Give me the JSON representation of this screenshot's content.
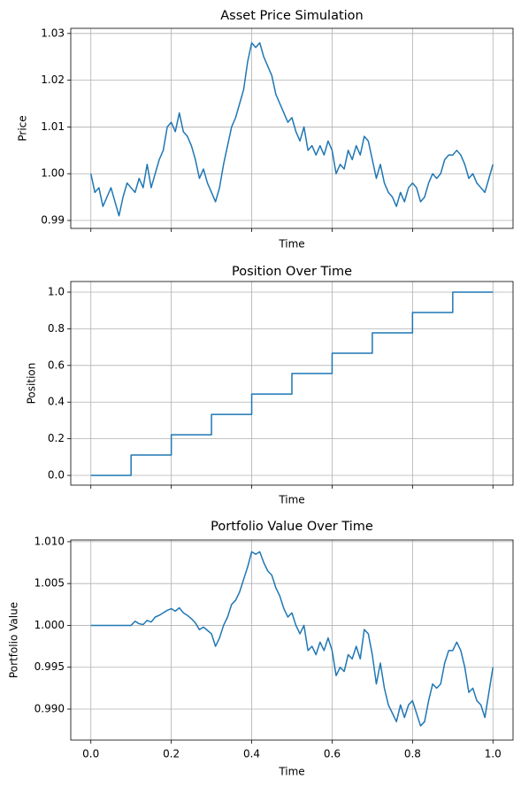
{
  "chart_data": [
    {
      "type": "line",
      "title": "Asset Price Simulation",
      "xlabel": "Time",
      "ylabel": "Price",
      "x": [
        0,
        0.01,
        0.02,
        0.03,
        0.04,
        0.05,
        0.06,
        0.07,
        0.08,
        0.09,
        0.1,
        0.11,
        0.12,
        0.13,
        0.14,
        0.15,
        0.16,
        0.17,
        0.18,
        0.19,
        0.2,
        0.21,
        0.22,
        0.23,
        0.24,
        0.25,
        0.26,
        0.27,
        0.28,
        0.29,
        0.3,
        0.31,
        0.32,
        0.33,
        0.34,
        0.35,
        0.36,
        0.37,
        0.38,
        0.39,
        0.4,
        0.41,
        0.42,
        0.43,
        0.44,
        0.45,
        0.46,
        0.47,
        0.48,
        0.49,
        0.5,
        0.51,
        0.52,
        0.53,
        0.54,
        0.55,
        0.56,
        0.57,
        0.58,
        0.59,
        0.6,
        0.61,
        0.62,
        0.63,
        0.64,
        0.65,
        0.66,
        0.67,
        0.68,
        0.69,
        0.7,
        0.71,
        0.72,
        0.73,
        0.74,
        0.75,
        0.76,
        0.77,
        0.78,
        0.79,
        0.8,
        0.81,
        0.82,
        0.83,
        0.84,
        0.85,
        0.86,
        0.87,
        0.88,
        0.89,
        0.9,
        0.91,
        0.92,
        0.93,
        0.94,
        0.95,
        0.96,
        0.97,
        0.98,
        0.99,
        1
      ],
      "series": [
        {
          "color": "#1f77b4",
          "values": [
            1.0,
            0.996,
            0.997,
            0.993,
            0.995,
            0.997,
            0.994,
            0.991,
            0.995,
            0.998,
            0.997,
            0.996,
            0.999,
            0.997,
            1.002,
            0.997,
            1.0,
            1.003,
            1.005,
            1.01,
            1.011,
            1.009,
            1.013,
            1.009,
            1.008,
            1.006,
            1.003,
            0.999,
            1.001,
            0.998,
            0.996,
            0.994,
            0.997,
            1.002,
            1.006,
            1.01,
            1.012,
            1.015,
            1.018,
            1.024,
            1.028,
            1.027,
            1.028,
            1.025,
            1.023,
            1.021,
            1.017,
            1.015,
            1.013,
            1.011,
            1.012,
            1.009,
            1.007,
            1.01,
            1.005,
            1.006,
            1.004,
            1.006,
            1.004,
            1.007,
            1.005,
            1.0,
            1.002,
            1.001,
            1.005,
            1.003,
            1.006,
            1.004,
            1.008,
            1.007,
            1.003,
            0.999,
            1.002,
            0.998,
            0.996,
            0.995,
            0.993,
            0.996,
            0.994,
            0.997,
            0.998,
            0.997,
            0.994,
            0.995,
            0.998,
            1.0,
            0.999,
            1.0,
            1.003,
            1.004,
            1.004,
            1.005,
            1.004,
            1.002,
            0.999,
            1.0,
            0.998,
            0.997,
            0.996,
            0.999,
            1.002
          ]
        }
      ],
      "xlim": [
        -0.05,
        1.05
      ],
      "xticks": [
        0,
        0.2,
        0.4,
        0.6,
        0.8,
        1
      ],
      "ylim": [
        0.9883,
        1.0311
      ],
      "yticks": [
        0.99,
        {
          "value": 1,
          "label": "1.00"
        },
        1.01,
        1.02,
        1.03
      ],
      "grid": true
    },
    {
      "type": "line",
      "title": "Position Over Time",
      "xlabel": "Time",
      "ylabel": "Position",
      "x": [
        0,
        0.1,
        0.1,
        0.2,
        0.2,
        0.3,
        0.3,
        0.4,
        0.4,
        0.5,
        0.5,
        0.6,
        0.6,
        0.7,
        0.7,
        0.8,
        0.8,
        0.9,
        0.9,
        1
      ],
      "series": [
        {
          "color": "#1f77b4",
          "values": [
            0,
            0,
            0.111,
            0.111,
            0.222,
            0.222,
            0.333,
            0.333,
            0.444,
            0.444,
            0.556,
            0.556,
            0.667,
            0.667,
            0.778,
            0.778,
            0.889,
            0.889,
            1,
            1
          ]
        }
      ],
      "xlim": [
        -0.05,
        1.05
      ],
      "xticks": [
        0,
        0.2,
        0.4,
        0.6,
        0.8,
        1
      ],
      "ylim": [
        -0.053,
        1.058
      ],
      "yticks": [
        {
          "value": 0,
          "label": "0.0"
        },
        0.2,
        0.4,
        0.6,
        0.8,
        {
          "value": 1,
          "label": "1.0"
        }
      ],
      "grid": true
    },
    {
      "type": "line",
      "title": "Portfolio Value Over Time",
      "xlabel": "Time",
      "ylabel": "Portfolio Value",
      "x": [
        0,
        0.01,
        0.02,
        0.03,
        0.04,
        0.05,
        0.06,
        0.07,
        0.08,
        0.09,
        0.1,
        0.11,
        0.12,
        0.13,
        0.14,
        0.15,
        0.16,
        0.17,
        0.18,
        0.19,
        0.2,
        0.21,
        0.22,
        0.23,
        0.24,
        0.25,
        0.26,
        0.27,
        0.28,
        0.29,
        0.3,
        0.31,
        0.32,
        0.33,
        0.34,
        0.35,
        0.36,
        0.37,
        0.38,
        0.39,
        0.4,
        0.41,
        0.42,
        0.43,
        0.44,
        0.45,
        0.46,
        0.47,
        0.48,
        0.49,
        0.5,
        0.51,
        0.52,
        0.53,
        0.54,
        0.55,
        0.56,
        0.57,
        0.58,
        0.59,
        0.6,
        0.61,
        0.62,
        0.63,
        0.64,
        0.65,
        0.66,
        0.67,
        0.68,
        0.69,
        0.7,
        0.71,
        0.72,
        0.73,
        0.74,
        0.75,
        0.76,
        0.77,
        0.78,
        0.79,
        0.8,
        0.81,
        0.82,
        0.83,
        0.84,
        0.85,
        0.86,
        0.87,
        0.88,
        0.89,
        0.9,
        0.91,
        0.92,
        0.93,
        0.94,
        0.95,
        0.96,
        0.97,
        0.98,
        0.99,
        1
      ],
      "series": [
        {
          "color": "#1f77b4",
          "values": [
            1.0,
            1.0,
            1.0,
            1.0,
            1.0,
            1.0,
            1.0,
            1.0,
            1.0,
            1.0,
            1.0,
            1.0005,
            1.0002,
            1.0001,
            1.0006,
            1.0004,
            1.001,
            1.0012,
            1.0015,
            1.0018,
            1.002,
            1.0017,
            1.0021,
            1.0015,
            1.0012,
            1.0008,
            1.0003,
            0.9995,
            0.9998,
            0.9994,
            0.999,
            0.9975,
            0.9985,
            1.0,
            1.001,
            1.0025,
            1.003,
            1.004,
            1.0055,
            1.007,
            1.0088,
            1.0085,
            1.0088,
            1.0075,
            1.0065,
            1.006,
            1.0045,
            1.0035,
            1.002,
            1.001,
            1.0015,
            1.0,
            0.999,
            1.0,
            0.997,
            0.9975,
            0.9965,
            0.998,
            0.997,
            0.9985,
            0.997,
            0.994,
            0.995,
            0.9945,
            0.9965,
            0.996,
            0.9975,
            0.996,
            0.9995,
            0.999,
            0.9965,
            0.993,
            0.9955,
            0.9925,
            0.9905,
            0.9895,
            0.9885,
            0.9905,
            0.989,
            0.9905,
            0.991,
            0.9895,
            0.988,
            0.9885,
            0.991,
            0.993,
            0.9925,
            0.993,
            0.9955,
            0.997,
            0.997,
            0.998,
            0.997,
            0.995,
            0.992,
            0.9925,
            0.991,
            0.9905,
            0.989,
            0.992,
            0.995
          ]
        }
      ],
      "xlim": [
        -0.05,
        1.05
      ],
      "xticks": [
        {
          "value": 0,
          "label": "0.0"
        },
        0.2,
        0.4,
        0.6,
        0.8,
        {
          "value": 1,
          "label": "1.0"
        }
      ],
      "xticklabels": true,
      "ylim": [
        0.9863,
        1.0102
      ],
      "yticks": [
        {
          "value": 0.99,
          "label": "0.990"
        },
        0.995,
        {
          "value": 1,
          "label": "1.000"
        },
        1.005,
        {
          "value": 1.01,
          "label": "1.010"
        }
      ],
      "grid": true
    }
  ]
}
